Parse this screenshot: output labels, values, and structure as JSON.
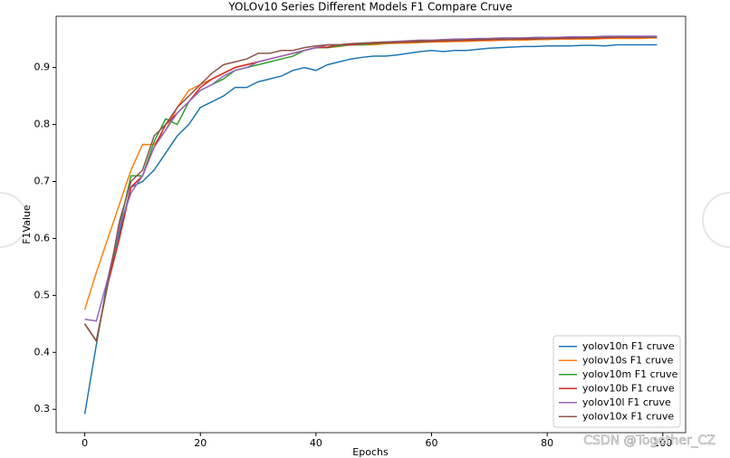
{
  "chart_data": {
    "type": "line",
    "title": "YOLOv10 Series Different Models F1 Compare Cruve",
    "xlabel": "Epochs",
    "ylabel": "F1Value",
    "watermark": "CSDN @Together_CZ",
    "x": [
      0,
      2,
      4,
      6,
      8,
      10,
      12,
      14,
      16,
      18,
      20,
      22,
      24,
      26,
      28,
      30,
      32,
      34,
      36,
      38,
      40,
      42,
      44,
      46,
      48,
      50,
      52,
      54,
      56,
      58,
      60,
      62,
      64,
      66,
      68,
      70,
      72,
      74,
      76,
      78,
      80,
      82,
      84,
      86,
      88,
      90,
      92,
      94,
      96,
      98,
      99
    ],
    "xlim": [
      -4.95,
      103.95
    ],
    "xticks": [
      0,
      20,
      40,
      60,
      80,
      100
    ],
    "ylim": [
      0.259,
      0.99
    ],
    "yticks": [
      0.3,
      0.4,
      0.5,
      0.6,
      0.7,
      0.8,
      0.9
    ],
    "legend": "lower right",
    "series": [
      {
        "name": "yolov10n F1 cruve",
        "color": "#1f77b4",
        "values": [
          0.292,
          0.413,
          0.53,
          0.61,
          0.69,
          0.7,
          0.72,
          0.75,
          0.78,
          0.8,
          0.83,
          0.84,
          0.85,
          0.865,
          0.865,
          0.875,
          0.88,
          0.885,
          0.895,
          0.9,
          0.895,
          0.905,
          0.91,
          0.915,
          0.918,
          0.92,
          0.92,
          0.922,
          0.925,
          0.928,
          0.93,
          0.928,
          0.93,
          0.93,
          0.932,
          0.934,
          0.935,
          0.936,
          0.937,
          0.937,
          0.938,
          0.938,
          0.938,
          0.939,
          0.939,
          0.938,
          0.94,
          0.94,
          0.94,
          0.94,
          0.94
        ]
      },
      {
        "name": "yolov10s F1 cruve",
        "color": "#ff7f0e",
        "values": [
          0.475,
          0.54,
          0.6,
          0.66,
          0.72,
          0.765,
          0.765,
          0.79,
          0.83,
          0.86,
          0.87,
          0.88,
          0.89,
          0.9,
          0.905,
          0.91,
          0.915,
          0.92,
          0.925,
          0.93,
          0.935,
          0.935,
          0.937,
          0.94,
          0.94,
          0.94,
          0.942,
          0.943,
          0.943,
          0.944,
          0.945,
          0.945,
          0.946,
          0.946,
          0.947,
          0.947,
          0.948,
          0.948,
          0.948,
          0.949,
          0.949,
          0.95,
          0.95,
          0.95,
          0.95,
          0.951,
          0.951,
          0.951,
          0.951,
          0.952,
          0.952
        ]
      },
      {
        "name": "yolov10m F1 cruve",
        "color": "#2ca02c",
        "values": [
          0.45,
          0.42,
          0.52,
          0.62,
          0.71,
          0.71,
          0.77,
          0.81,
          0.8,
          0.84,
          0.86,
          0.87,
          0.88,
          0.895,
          0.9,
          0.905,
          0.91,
          0.915,
          0.92,
          0.93,
          0.935,
          0.935,
          0.938,
          0.94,
          0.94,
          0.942,
          0.943,
          0.944,
          0.945,
          0.945,
          0.946,
          0.947,
          0.947,
          0.948,
          0.948,
          0.949,
          0.949,
          0.95,
          0.95,
          0.95,
          0.951,
          0.951,
          0.952,
          0.952,
          0.952,
          0.953,
          0.954,
          0.953,
          0.953,
          0.953,
          0.953
        ]
      },
      {
        "name": "yolov10b F1 cruve",
        "color": "#d62728",
        "values": [
          0.45,
          0.42,
          0.52,
          0.6,
          0.69,
          0.71,
          0.76,
          0.8,
          0.82,
          0.84,
          0.865,
          0.88,
          0.89,
          0.9,
          0.905,
          0.91,
          0.915,
          0.92,
          0.925,
          0.93,
          0.935,
          0.936,
          0.94,
          0.94,
          0.942,
          0.943,
          0.944,
          0.944,
          0.945,
          0.946,
          0.946,
          0.947,
          0.947,
          0.948,
          0.948,
          0.949,
          0.949,
          0.95,
          0.95,
          0.95,
          0.951,
          0.951,
          0.951,
          0.952,
          0.952,
          0.952,
          0.953,
          0.953,
          0.953,
          0.953,
          0.953
        ]
      },
      {
        "name": "yolov10l F1 cruve",
        "color": "#9467bd",
        "values": [
          0.458,
          0.455,
          0.53,
          0.62,
          0.68,
          0.71,
          0.76,
          0.79,
          0.82,
          0.84,
          0.86,
          0.87,
          0.885,
          0.895,
          0.9,
          0.91,
          0.915,
          0.92,
          0.925,
          0.93,
          0.935,
          0.94,
          0.94,
          0.942,
          0.943,
          0.944,
          0.945,
          0.946,
          0.947,
          0.948,
          0.948,
          0.949,
          0.95,
          0.95,
          0.951,
          0.951,
          0.952,
          0.952,
          0.952,
          0.953,
          0.953,
          0.953,
          0.954,
          0.954,
          0.954,
          0.955,
          0.955,
          0.955,
          0.955,
          0.955,
          0.955
        ]
      },
      {
        "name": "yolov10x F1 cruve",
        "color": "#8c564b",
        "values": [
          0.45,
          0.42,
          0.52,
          0.63,
          0.7,
          0.72,
          0.78,
          0.8,
          0.83,
          0.85,
          0.87,
          0.89,
          0.905,
          0.91,
          0.915,
          0.925,
          0.925,
          0.93,
          0.93,
          0.935,
          0.938,
          0.94,
          0.94,
          0.942,
          0.943,
          0.944,
          0.945,
          0.945,
          0.946,
          0.947,
          0.947,
          0.948,
          0.948,
          0.949,
          0.949,
          0.95,
          0.95,
          0.95,
          0.951,
          0.951,
          0.951,
          0.952,
          0.952,
          0.952,
          0.953,
          0.953,
          0.953,
          0.953,
          0.953,
          0.953,
          0.953
        ]
      }
    ]
  }
}
